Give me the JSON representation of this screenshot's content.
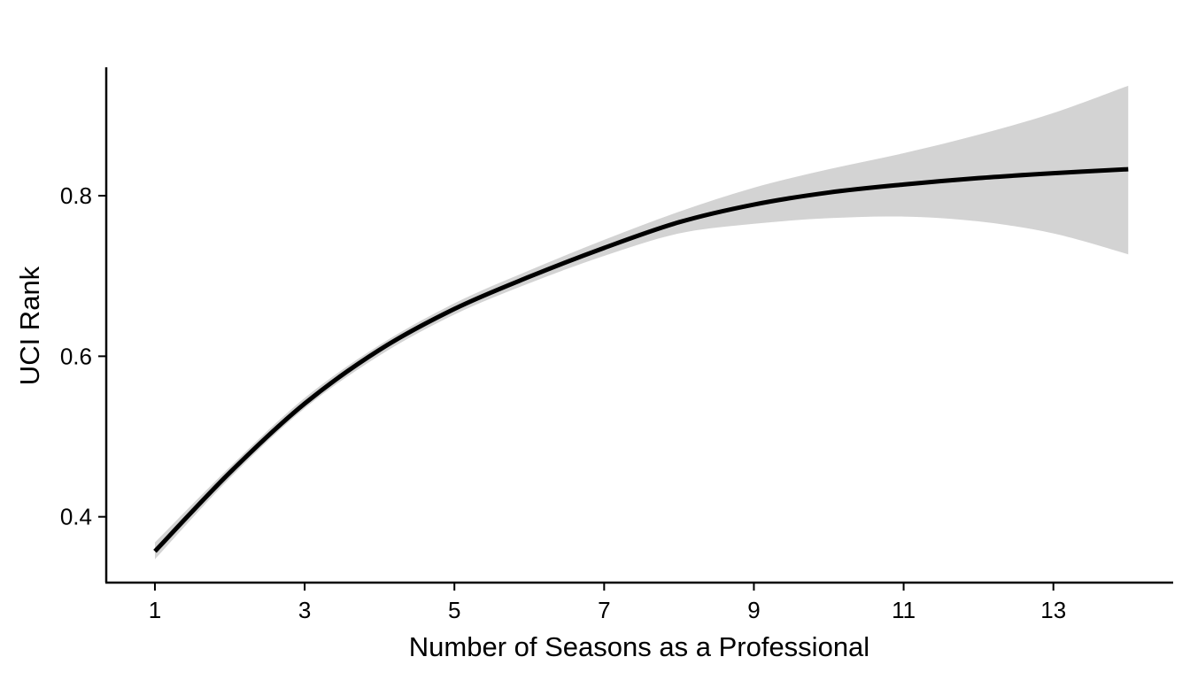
{
  "chart_data": {
    "type": "line",
    "xlabel": "Number of Seasons as a Professional",
    "ylabel": "UCI Rank",
    "xlim": [
      0.35,
      14.6
    ],
    "ylim": [
      0.318,
      0.96
    ],
    "x_ticks": [
      1,
      3,
      5,
      7,
      9,
      11,
      13
    ],
    "y_ticks": [
      0.4,
      0.6,
      0.8
    ],
    "y_tick_labels": [
      "0.4",
      "0.6",
      "0.8"
    ],
    "grid": false,
    "series": [
      {
        "line_color": "#000000",
        "band_color": "#d3d3d3",
        "points": [
          {
            "x": 1,
            "y": 0.357,
            "lower": 0.347,
            "upper": 0.368
          },
          {
            "x": 2,
            "y": 0.455,
            "lower": 0.448,
            "upper": 0.462
          },
          {
            "x": 3,
            "y": 0.541,
            "lower": 0.535,
            "upper": 0.548
          },
          {
            "x": 4,
            "y": 0.608,
            "lower": 0.601,
            "upper": 0.614
          },
          {
            "x": 5,
            "y": 0.659,
            "lower": 0.652,
            "upper": 0.666
          },
          {
            "x": 6,
            "y": 0.699,
            "lower": 0.691,
            "upper": 0.707
          },
          {
            "x": 7,
            "y": 0.735,
            "lower": 0.725,
            "upper": 0.745
          },
          {
            "x": 8,
            "y": 0.767,
            "lower": 0.753,
            "upper": 0.78
          },
          {
            "x": 9,
            "y": 0.789,
            "lower": 0.765,
            "upper": 0.81
          },
          {
            "x": 10,
            "y": 0.804,
            "lower": 0.772,
            "upper": 0.833
          },
          {
            "x": 11,
            "y": 0.814,
            "lower": 0.774,
            "upper": 0.853
          },
          {
            "x": 12,
            "y": 0.822,
            "lower": 0.768,
            "upper": 0.876
          },
          {
            "x": 13,
            "y": 0.828,
            "lower": 0.753,
            "upper": 0.903
          },
          {
            "x": 14,
            "y": 0.833,
            "lower": 0.727,
            "upper": 0.937
          }
        ]
      }
    ]
  }
}
